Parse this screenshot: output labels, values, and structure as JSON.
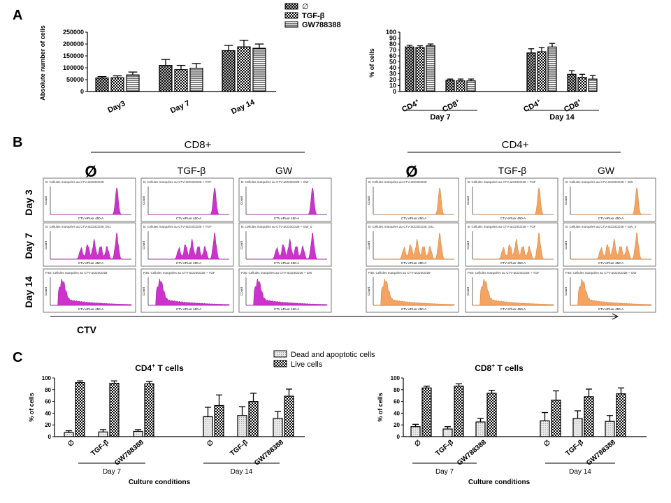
{
  "panel_labels": {
    "a": "A",
    "b": "B",
    "c": "C"
  },
  "legend_a": [
    "∅",
    "TGF-β",
    "GW788388"
  ],
  "legend_c": [
    "Dead and apoptotic cells",
    "Live cells"
  ],
  "colors": {
    "magenta": "#cc33cc",
    "orange": "#f4a460",
    "black": "#000000"
  },
  "chart_data": [
    {
      "type": "bar",
      "panel": "A-left",
      "ylabel": "Absolute number of cells",
      "ylim": [
        0,
        250000
      ],
      "yticks": [
        "0",
        "50000",
        "100000",
        "150000",
        "200000",
        "250000"
      ],
      "categories": [
        "Day3",
        "Day 7",
        "Day 14"
      ],
      "series": [
        {
          "name": "∅",
          "values": [
            57000,
            110000,
            172000
          ],
          "errors": [
            6000,
            25000,
            22000
          ]
        },
        {
          "name": "TGF-β",
          "values": [
            58000,
            92000,
            188000
          ],
          "errors": [
            8000,
            18000,
            28000
          ]
        },
        {
          "name": "GW788388",
          "values": [
            70000,
            98000,
            182000
          ],
          "errors": [
            12000,
            20000,
            18000
          ]
        }
      ]
    },
    {
      "type": "bar",
      "panel": "A-right",
      "ylabel": "% of cells",
      "ylim": [
        0,
        100
      ],
      "yticks": [
        "0",
        "10",
        "20",
        "30",
        "40",
        "50",
        "60",
        "70",
        "80",
        "90",
        "100"
      ],
      "groups": [
        {
          "label": "Day 7",
          "subgroups": [
            {
              "label": "CD4+",
              "values": [
                75,
                74,
                77
              ],
              "errors": [
                3,
                3,
                3
              ]
            },
            {
              "label": "CD8+",
              "values": [
                19,
                18,
                18
              ],
              "errors": [
                2,
                3,
                3
              ]
            }
          ]
        },
        {
          "label": "Day 14",
          "subgroups": [
            {
              "label": "CD4+",
              "values": [
                65,
                67,
                75
              ],
              "errors": [
                7,
                7,
                6
              ]
            },
            {
              "label": "CD8+",
              "values": [
                29,
                24,
                21
              ],
              "errors": [
                6,
                5,
                6
              ]
            }
          ]
        }
      ]
    },
    {
      "type": "bar",
      "panel": "C-left",
      "title": "CD4+ T cells",
      "ylabel": "% of cells",
      "xlabel": "Culture conditions",
      "ylim": [
        0,
        100
      ],
      "yticks": [
        "0",
        "20",
        "40",
        "60",
        "80",
        "100"
      ],
      "day_labels": [
        "Day 7",
        "Day 14"
      ],
      "conditions": [
        "∅",
        "TGF-β",
        "GW788388"
      ],
      "series": [
        {
          "name": "Dead and apoptotic cells",
          "values": [
            7,
            8,
            9,
            34,
            36,
            31
          ],
          "errors": [
            3,
            4,
            3,
            16,
            15,
            12
          ]
        },
        {
          "name": "Live cells",
          "values": [
            92,
            91,
            90,
            53,
            60,
            69
          ],
          "errors": [
            3,
            4,
            4,
            18,
            14,
            12
          ]
        }
      ]
    },
    {
      "type": "bar",
      "panel": "C-right",
      "title": "CD8+ T cells",
      "ylabel": "% of cells",
      "xlabel": "Culture conditions",
      "ylim": [
        0,
        100
      ],
      "yticks": [
        "0",
        "20",
        "40",
        "60",
        "80",
        "100"
      ],
      "day_labels": [
        "Day 7",
        "Day 14"
      ],
      "conditions": [
        "∅",
        "TGF-β",
        "GW788388"
      ],
      "series": [
        {
          "name": "Dead and apoptotic cells",
          "values": [
            17,
            13,
            25,
            27,
            31,
            26
          ],
          "errors": [
            4,
            4,
            6,
            14,
            13,
            10
          ]
        },
        {
          "name": "Live cells",
          "values": [
            83,
            86,
            74,
            62,
            68,
            73
          ],
          "errors": [
            3,
            4,
            5,
            16,
            13,
            10
          ]
        }
      ]
    },
    {
      "type": "histogram-grid",
      "panel": "B",
      "group_titles": [
        "CD8+",
        "CD4+"
      ],
      "column_labels": [
        "Ø",
        "TGF-β",
        "GW",
        "Ø",
        "TGF-β",
        "GW"
      ],
      "row_labels": [
        "Day 3",
        "Day 7",
        "Day 14"
      ],
      "axis_label": "CTV",
      "tiny_texts": {
        "cd8_day3": [
          "B: Cellules marquées au CTV-aCD3CD28",
          "B: Cellules marquées au CTV-aCD3CD28 + TGF",
          "B: Cellules marquées au CTV-aCD3CD28 + GW"
        ],
        "cd8_day7": [
          "B: Cellules marquées au CTV-aCD3CD28_001",
          "B: Cellules marquées au CTV-aCD3CD28 + TGF",
          "B: Cellules marquées au CTV-aCD3CD28 + GW_0"
        ],
        "cd8_day14": [
          "P36: Cellules marquées au CTV-aCD3CD28",
          "P36: Cellules marquées au CTV-aCD3CD28 + TGF",
          "P36: Cellules marquées au CTV-aCD3CD28 + GW"
        ],
        "cd4_day3": [
          "B: Cellules marquées au CTV-aCD3CD28",
          "B: Cellules marquées au CTV-aCD3CD28 + TGF",
          "B: Cellules marquées au CTV-aCD3CD28 + GW"
        ],
        "cd4_day7": [
          "B: Cellules marquées au CTV-aCD3CD28_001",
          "B: Cellules marquées au CTV-aCD3CD28 + TGF",
          "B: Cellules marquées au CTV-aCD3CD28 + GW_0"
        ],
        "cd4_day14": [
          "P36: Cellules marquées au CTV-aCD3CD28",
          "P36: Cellules marquées au CTV-aCD3CD28 + TGF",
          "P36: Cellules marquées au CTV-aCD3CD28 + GW"
        ]
      },
      "hist_xlabel": "CTV eFluor 450-A",
      "hist_ylabel": "Count"
    }
  ]
}
